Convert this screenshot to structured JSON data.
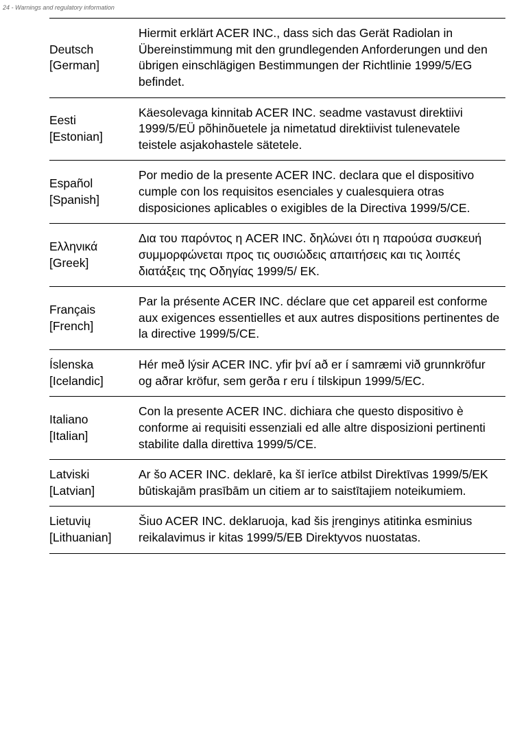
{
  "header": "24 - Warnings and regulatory information",
  "rows": [
    {
      "lang": "Deutsch",
      "langEn": "[German]",
      "text": "Hiermit erklärt ACER INC., dass sich das Gerät Radiolan in Übereinstimmung mit den grundlegenden Anforderungen und den übrigen einschlägigen Bestimmungen der Richtlinie 1999/5/EG befindet."
    },
    {
      "lang": "Eesti",
      "langEn": "[Estonian]",
      "text": "Käesolevaga kinnitab ACER INC. seadme vastavust direktiivi 1999/5/EÜ põhinõuetele ja nimetatud direktiivist tulenevatele teistele asjakohastele sätetele."
    },
    {
      "lang": "Español",
      "langEn": "[Spanish]",
      "text": "Por medio de la presente ACER INC. declara que el dispositivo cumple con los requisitos esenciales y cualesquiera otras disposiciones aplicables o exigibles de la Directiva 1999/5/CE."
    },
    {
      "lang": "Ελληνικά",
      "langEn": "[Greek]",
      "text": "Δια του παρόντος η ACER INC. δηλώνει ότι η παρούσα συσκευή συμμορφώνεται προς τις ουσιώδεις απαιτήσεις και τις λοιπές διατάξεις της Οδηγίας 1999/5/ ΕΚ."
    },
    {
      "lang": "Français",
      "langEn": "[French]",
      "text": "Par la présente ACER INC. déclare que cet appareil est conforme aux exigences essentielles et aux autres dispositions pertinentes de la directive 1999/5/CE."
    },
    {
      "lang": "Íslenska",
      "langEn": "[Icelandic]",
      "text": "Hér með lýsir ACER INC. yfir því að er í samræmi við grunnkröfur og aðrar kröfur, sem gerða r eru í tilskipun 1999/5/EC."
    },
    {
      "lang": "Italiano",
      "langEn": "[Italian]",
      "text": "Con la presente ACER INC. dichiara che questo dispositivo è conforme ai requisiti essenziali ed alle altre disposizioni pertinenti stabilite dalla direttiva 1999/5/CE."
    },
    {
      "lang": "Latviski",
      "langEn": "[Latvian]",
      "text": "Ar šo ACER INC. deklarē, ka šī ierīce atbilst Direktīvas 1999/5/EK būtiskajām prasībām un citiem ar to saistītajiem noteikumiem."
    },
    {
      "lang": "Lietuvių",
      "langEn": "[Lithuanian]",
      "text": "Šiuo ACER INC. deklaruoja, kad šis įrenginys atitinka esminius reikalavimus ir kitas 1999/5/EB Direktyvos nuostatas."
    }
  ]
}
